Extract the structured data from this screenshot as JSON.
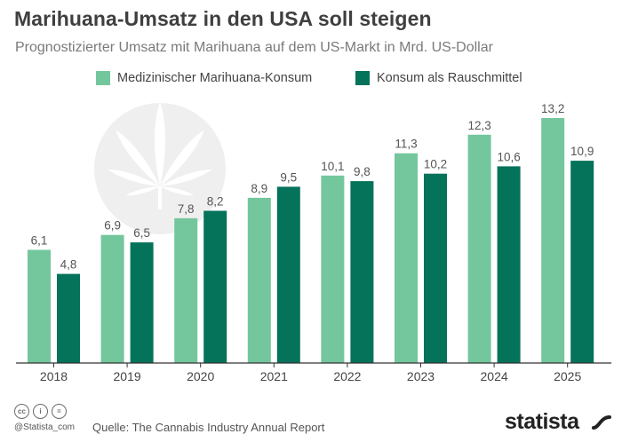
{
  "header": {
    "title": "Marihuana-Umsatz in den USA soll steigen",
    "subtitle": "Prognostizierter Umsatz mit Marihuana auf dem US-Markt in Mrd. US-Dollar"
  },
  "legend": {
    "items": [
      {
        "label": "Medizinischer Marihuana-Konsum",
        "color": "#74c69d"
      },
      {
        "label": "Konsum als Rauschmittel",
        "color": "#05725a"
      }
    ]
  },
  "chart_data": {
    "type": "bar",
    "title": "Marihuana-Umsatz in den USA soll steigen",
    "subtitle": "Prognostizierter Umsatz mit Marihuana auf dem US-Markt in Mrd. US-Dollar",
    "categories": [
      "2018",
      "2019",
      "2020",
      "2021",
      "2022",
      "2023",
      "2024",
      "2025"
    ],
    "series": [
      {
        "name": "Medizinischer Marihuana-Konsum",
        "color": "#74c69d",
        "values": [
          6.1,
          6.9,
          7.8,
          8.9,
          10.1,
          11.3,
          12.3,
          13.2
        ]
      },
      {
        "name": "Konsum als Rauschmittel",
        "color": "#05725a",
        "values": [
          4.8,
          6.5,
          8.2,
          9.5,
          9.8,
          10.2,
          10.6,
          10.9
        ]
      }
    ],
    "data_labels": [
      [
        "6,1",
        "6,9",
        "7,8",
        "8,9",
        "10,1",
        "11,3",
        "12,3",
        "13,2"
      ],
      [
        "4,8",
        "6,5",
        "8,2",
        "9,5",
        "9,8",
        "10,2",
        "10,6",
        "10,9"
      ]
    ],
    "ylim": [
      0,
      14
    ],
    "xlabel": "",
    "ylabel": "",
    "grid": false,
    "legend_position": "top-left"
  },
  "footer": {
    "cc_icons": [
      "cc-icon",
      "by-icon",
      "nd-icon"
    ],
    "cc_texts": [
      "cc",
      "i",
      "="
    ],
    "handle": "@Statista_com",
    "source": "Quelle: The Cannabis Industry Annual Report",
    "brand": "statista"
  },
  "colors": {
    "axis": "#333333",
    "label": "#555555",
    "watermark": "#efefef"
  }
}
